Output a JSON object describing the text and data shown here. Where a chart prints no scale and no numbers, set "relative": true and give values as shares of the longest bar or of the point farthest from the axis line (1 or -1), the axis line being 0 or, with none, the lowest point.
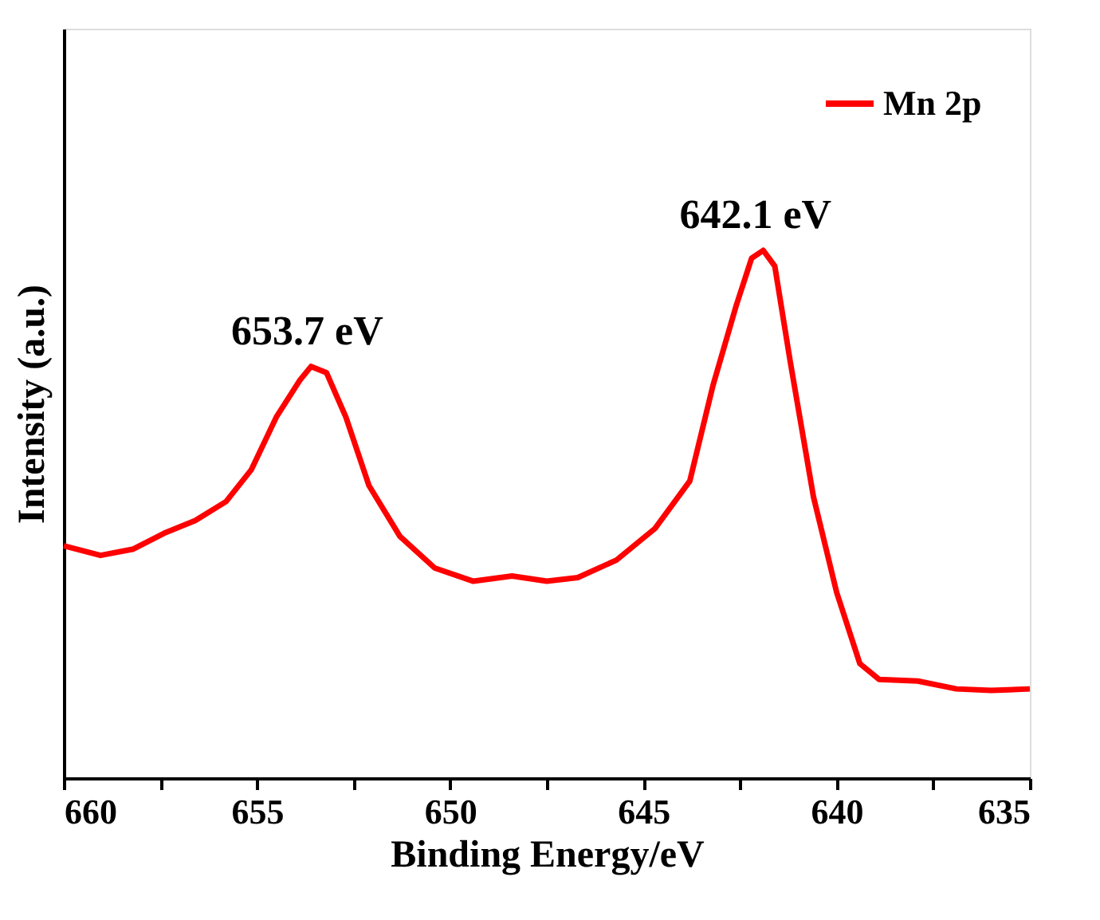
{
  "chart_data": {
    "type": "line",
    "xlabel": "Binding Energy/eV",
    "ylabel": "Intensity (a.u.)",
    "relative": true,
    "tick_labels": "x",
    "grid": false,
    "legend": "top right",
    "marker": "none",
    "line_style": "solid",
    "xlim": [
      660,
      635
    ],
    "xticks": [
      660,
      {
        "value": 657.5,
        "label": null
      },
      655,
      {
        "value": 652.5,
        "label": null
      },
      650,
      {
        "value": 647.5,
        "label": null
      },
      645,
      {
        "value": 642.5,
        "label": null
      },
      640,
      {
        "value": 637.5,
        "label": null
      },
      635
    ],
    "annotations": [
      {
        "text": "653.7 eV",
        "x": 653.7,
        "y": 0.78
      },
      {
        "text": "642.1 eV",
        "x": 642.1,
        "y": 1.0
      }
    ],
    "series": [
      {
        "name": "Mn 2p",
        "color": "#ff0000",
        "x": [
          660.0,
          659.05,
          658.2,
          657.4,
          656.6,
          655.8,
          655.15,
          654.5,
          653.9,
          653.6,
          653.2,
          652.7,
          652.1,
          651.3,
          650.4,
          649.4,
          648.4,
          647.5,
          646.7,
          645.7,
          644.7,
          643.8,
          643.2,
          642.6,
          642.2,
          641.9,
          641.6,
          641.2,
          640.6,
          640.0,
          639.4,
          638.9,
          637.9,
          636.9,
          636.0,
          635.0
        ],
        "values": [
          0.44,
          0.422,
          0.434,
          0.464,
          0.488,
          0.524,
          0.584,
          0.684,
          0.753,
          0.78,
          0.768,
          0.684,
          0.554,
          0.458,
          0.398,
          0.373,
          0.383,
          0.373,
          0.38,
          0.413,
          0.473,
          0.563,
          0.744,
          0.895,
          0.985,
          1.0,
          0.97,
          0.789,
          0.533,
          0.352,
          0.217,
          0.187,
          0.184,
          0.169,
          0.166,
          0.169
        ]
      }
    ]
  }
}
